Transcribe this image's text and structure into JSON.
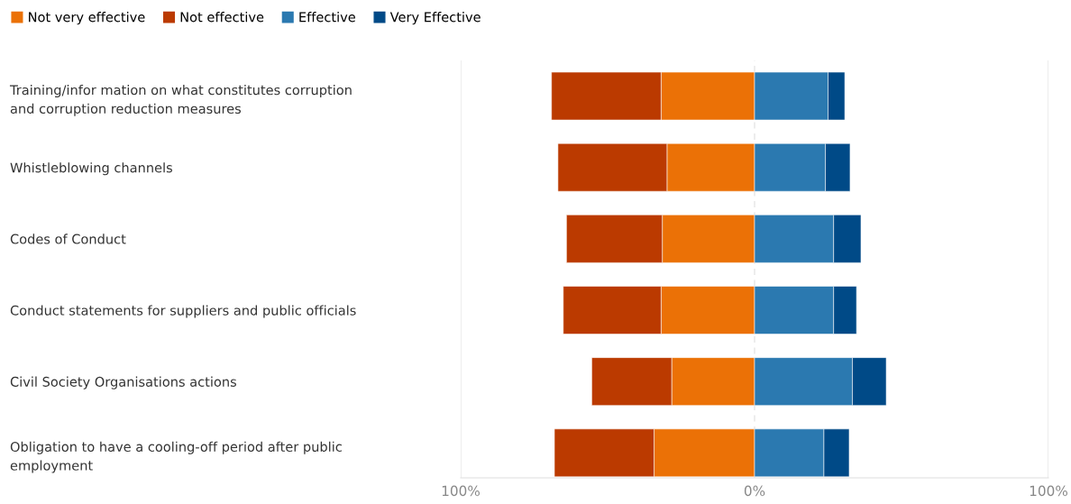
{
  "chart_data": {
    "type": "bar",
    "orientation": "horizontal",
    "stacked": true,
    "categories": [
      "Training/infor mation on what constitutes corruption\nand corruption reduction measures",
      "Whistleblowing channels",
      "Codes of Conduct",
      "Conduct statements for suppliers and public officials",
      "Civil Society Organisations actions",
      "Obligation to have a cooling-off period after public\nemployment"
    ],
    "series": [
      {
        "name": "Not very effective",
        "color": "#eb7106",
        "values": [
          -31.8,
          -29.8,
          -31.4,
          -31.8,
          -28.2,
          -34.2
        ]
      },
      {
        "name": "Not effective",
        "color": "#bb3a00",
        "values": [
          -37.3,
          -37.1,
          -32.6,
          -33.3,
          -27.2,
          -33.9
        ]
      },
      {
        "name": "Effective",
        "color": "#2b79b0",
        "values": [
          25.0,
          24.1,
          26.9,
          26.9,
          33.3,
          23.6
        ]
      },
      {
        "name": "Very Effective",
        "color": "#004a87",
        "values": [
          5.7,
          8.4,
          9.3,
          7.8,
          11.5,
          8.6
        ]
      }
    ],
    "xlim": [
      -100,
      100
    ],
    "xticks": [
      {
        "value": -100,
        "label": "100%"
      },
      {
        "value": 0,
        "label": "0%"
      },
      {
        "value": 100,
        "label": "100%"
      }
    ],
    "grid": "x",
    "legend": "top left"
  }
}
